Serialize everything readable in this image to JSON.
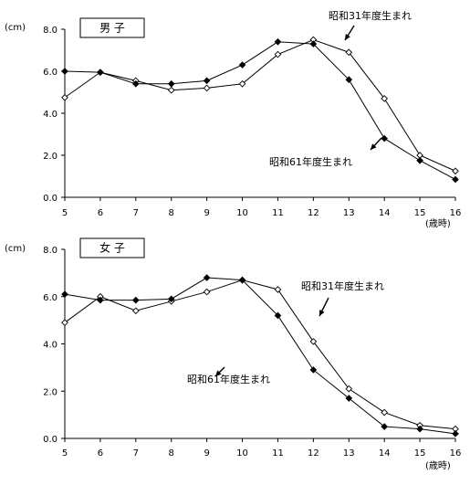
{
  "chart_data": [
    {
      "type": "line",
      "title": "男 子",
      "ylabel": "(cm)",
      "xlabel": "(歳時)",
      "ylim": [
        0,
        8
      ],
      "yticks": [
        "0.0",
        "2.0",
        "4.0",
        "6.0",
        "8.0"
      ],
      "x": [
        5,
        6,
        7,
        8,
        9,
        10,
        11,
        12,
        13,
        14,
        15,
        16
      ],
      "xticks": [
        "5",
        "6",
        "7",
        "8",
        "9",
        "10",
        "11",
        "12",
        "13",
        "14",
        "15",
        "16"
      ],
      "grid": false,
      "series": [
        {
          "name": "昭和31年度生まれ",
          "marker": "open-diamond",
          "color": "#000000",
          "values": [
            4.75,
            5.95,
            5.55,
            5.1,
            5.2,
            5.4,
            6.8,
            7.5,
            6.9,
            4.7,
            2.0,
            1.25
          ]
        },
        {
          "name": "昭和61年度生まれ",
          "marker": "filled-diamond",
          "color": "#000000",
          "values": [
            6.0,
            5.95,
            5.4,
            5.4,
            5.55,
            6.3,
            7.4,
            7.3,
            5.6,
            2.8,
            1.75,
            0.85
          ]
        }
      ],
      "annotations": [
        {
          "text": "昭和31年度生まれ",
          "series": 0
        },
        {
          "text": "昭和61年度生まれ",
          "series": 1
        }
      ]
    },
    {
      "type": "line",
      "title": "女 子",
      "ylabel": "(cm)",
      "xlabel": "(歳時)",
      "ylim": [
        0,
        8
      ],
      "yticks": [
        "0.0",
        "2.0",
        "4.0",
        "6.0",
        "8.0"
      ],
      "x": [
        5,
        6,
        7,
        8,
        9,
        10,
        11,
        12,
        13,
        14,
        15,
        16
      ],
      "xticks": [
        "5",
        "6",
        "7",
        "8",
        "9",
        "10",
        "11",
        "12",
        "13",
        "14",
        "15",
        "16"
      ],
      "grid": false,
      "series": [
        {
          "name": "昭和31年度生まれ",
          "marker": "open-diamond",
          "color": "#000000",
          "values": [
            4.9,
            6.0,
            5.4,
            5.8,
            6.2,
            6.7,
            6.3,
            4.1,
            2.1,
            1.1,
            0.55,
            0.4
          ]
        },
        {
          "name": "昭和61年度生まれ",
          "marker": "filled-diamond",
          "color": "#000000",
          "values": [
            6.1,
            5.85,
            5.85,
            5.9,
            6.8,
            6.7,
            5.2,
            2.9,
            1.7,
            0.5,
            0.4,
            0.2
          ]
        }
      ],
      "annotations": [
        {
          "text": "昭和31年度生まれ",
          "series": 0
        },
        {
          "text": "昭和61年度生まれ",
          "series": 1
        }
      ]
    }
  ]
}
